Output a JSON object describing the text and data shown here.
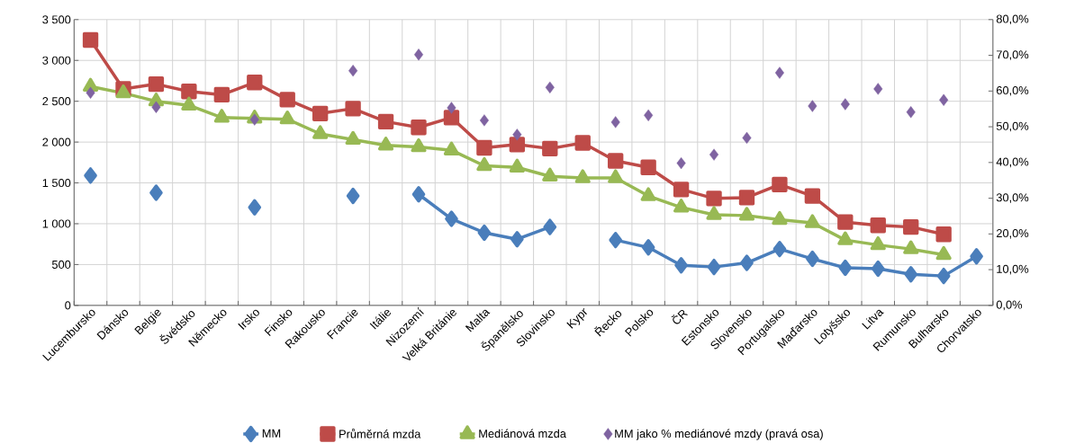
{
  "chart_data": {
    "type": "line",
    "categories": [
      "Lucembursko",
      "Dánsko",
      "Belgie",
      "Švédsko",
      "Německo",
      "Irsko",
      "Finsko",
      "Rakousko",
      "Francie",
      "Itálie",
      "Nizozemí",
      "Velká Británie",
      "Malta",
      "Španělsko",
      "Slovinsko",
      "Kypr",
      "Řecko",
      "Polsko",
      "ČR",
      "Estonsko",
      "Slovensko",
      "Portugalsko",
      "Maďarsko",
      "Lotyšsko",
      "Litva",
      "Rumunsko",
      "Bulharsko",
      "Chorvatsko"
    ],
    "series": [
      {
        "name": "MM",
        "color": "#4a7ebb",
        "marker": "diamond",
        "values": [
          1590,
          null,
          1380,
          null,
          null,
          1200,
          null,
          null,
          1340,
          null,
          1360,
          1060,
          890,
          810,
          960,
          null,
          800,
          710,
          490,
          470,
          520,
          690,
          570,
          460,
          450,
          380,
          360,
          600
        ]
      },
      {
        "name": "Průměrná mzda",
        "color": "#be4b48",
        "marker": "square",
        "values": [
          3250,
          2650,
          2710,
          2620,
          2580,
          2730,
          2520,
          2350,
          2410,
          2250,
          2180,
          2300,
          1930,
          1970,
          1920,
          1990,
          1770,
          1690,
          1420,
          1310,
          1320,
          1480,
          1340,
          1020,
          980,
          960,
          870,
          null
        ]
      },
      {
        "name": "Mediánová mzda",
        "color": "#98b954",
        "marker": "triangle",
        "values": [
          2680,
          2600,
          2500,
          2450,
          2300,
          2290,
          2280,
          2100,
          2030,
          1960,
          1940,
          1900,
          1710,
          1690,
          1580,
          1560,
          1560,
          1340,
          1200,
          1110,
          1100,
          1050,
          1010,
          800,
          740,
          690,
          620,
          null
        ]
      },
      {
        "name": "MM jako % mediánové mzdy (pravá osa)",
        "color": "#7f63a1",
        "marker": "diamond",
        "type": "scatter",
        "axis": "y2",
        "values": [
          59.5,
          null,
          55.5,
          null,
          null,
          52,
          null,
          null,
          65.7,
          null,
          70.2,
          55.3,
          51.8,
          47.8,
          61,
          null,
          51.3,
          53.2,
          39.8,
          42.2,
          46.9,
          65.1,
          55.8,
          56.3,
          60.6,
          54.1,
          57.5,
          null
        ]
      }
    ],
    "ylim": [
      0,
      3500
    ],
    "yticks": [
      0,
      500,
      {
        "value": 1000,
        "label": "1 000"
      },
      {
        "value": 1500,
        "label": "1 500"
      },
      {
        "value": 2000,
        "label": "2 000"
      },
      {
        "value": 2500,
        "label": "2 500"
      },
      {
        "value": 3000,
        "label": "3 000"
      },
      {
        "value": 3500,
        "label": "3 500"
      }
    ],
    "y2lim": [
      0,
      80
    ],
    "y2ticks": [
      {
        "value": 0,
        "label": "0,0%"
      },
      {
        "value": 10,
        "label": "10,0%"
      },
      {
        "value": 20,
        "label": "20,0%"
      },
      {
        "value": 30,
        "label": "30,0%"
      },
      {
        "value": 40,
        "label": "40,0%"
      },
      {
        "value": 50,
        "label": "50,0%"
      },
      {
        "value": 60,
        "label": "60,0%"
      },
      {
        "value": 70,
        "label": "70,0%"
      },
      {
        "value": 80,
        "label": "80,0%"
      }
    ],
    "grid": true,
    "legend": "bottom",
    "line_style": "solid"
  }
}
